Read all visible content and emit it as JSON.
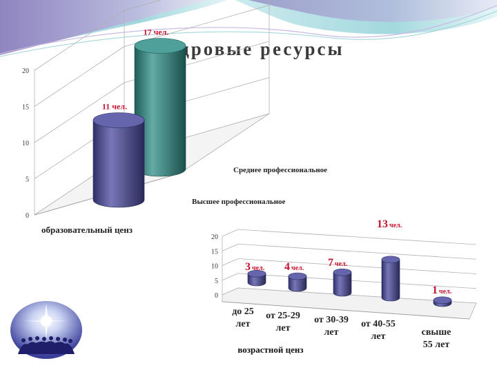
{
  "slide": {
    "title": "Кадровые ресурсы",
    "colors": {
      "accent": "#c8102e",
      "wave_purple": "#8a6fb8",
      "wave_teal": "#9bd3d8"
    }
  },
  "logo": {
    "icon": "people-glow-logo"
  },
  "chart_data": [
    {
      "type": "bar",
      "subtype": "3d-cylinder",
      "title": "",
      "xlabel": "образовательный ценз",
      "ylabel": "",
      "ylim": [
        0,
        20
      ],
      "yticks": [
        "0",
        "5",
        "10",
        "15",
        "20"
      ],
      "grid": true,
      "categories": [
        "Высшее профессиональное",
        "Среднее профессиональное"
      ],
      "values": [
        11,
        17
      ],
      "data_labels": [
        "11 чел.",
        "17 чел."
      ],
      "colors": [
        "#4a4aa0",
        "#2f8f88"
      ]
    },
    {
      "type": "bar",
      "subtype": "3d-cylinder",
      "title": "",
      "xlabel": "возрастной ценз",
      "ylabel": "",
      "ylim": [
        0,
        20
      ],
      "yticks": [
        "0",
        "5",
        "10",
        "15",
        "20"
      ],
      "grid": true,
      "categories": [
        "до 25 лет",
        "от 25-29 лет",
        "от 30-39 лет",
        "от 40-55 лет",
        "свыше 55 лет"
      ],
      "category_lines": [
        [
          "до 25",
          "лет"
        ],
        [
          "от 25-29",
          "лет"
        ],
        [
          "от 30-39",
          "лет"
        ],
        [
          "от 40-55",
          "лет"
        ],
        [
          "свыше",
          "55 лет"
        ]
      ],
      "values": [
        3,
        4,
        7,
        13,
        1
      ],
      "data_labels": [
        {
          "num": "3",
          "unit": "чел."
        },
        {
          "num": "4",
          "unit": "чел."
        },
        {
          "num": "7",
          "unit": "чел."
        },
        {
          "num": "13",
          "unit": "чел."
        },
        {
          "num": "1",
          "unit": "чел."
        }
      ],
      "color": "#4a4aa0"
    }
  ]
}
